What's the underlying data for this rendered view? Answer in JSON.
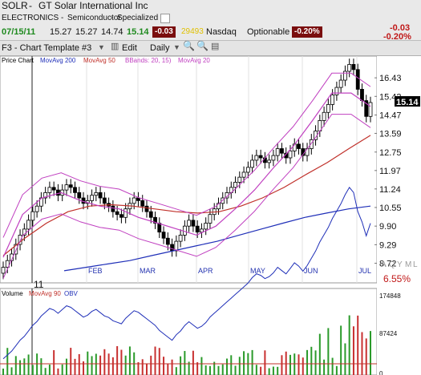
{
  "header": {
    "symbol": "SOLR",
    "company": "GT Solar International Inc",
    "sector": "ELECTRONICS",
    "industry": "Semiconductor",
    "subindustry": "Specialized",
    "template_label": "F3 - Chart Template #3",
    "edit_label": "Edit",
    "period_label": "Daily"
  },
  "quote": {
    "date": "07/15/11",
    "open": "15.27",
    "high": "15.27",
    "low": "14.74",
    "close": "15.14",
    "change": "-0.03",
    "volume": "29493",
    "exchange": "Nasdaq",
    "optionable": "Optionable",
    "pct_change": "-0.20%",
    "right_change": "-0.03",
    "right_pct": "-0.20%"
  },
  "legend": {
    "price_chart": "Price Chart",
    "ma200": "MovAvg 200",
    "ma50": "MovAvg 50",
    "bbands": "BBands: 20, 15)",
    "ma20": "MovAvg 20"
  },
  "volume_legend": {
    "volume": "Volume",
    "ma90": "MovAvg 90",
    "obv": "OBV"
  },
  "timeframe_letters": [
    "A",
    "Q",
    "Y",
    "M",
    "L"
  ],
  "colors": {
    "price_bar": "#000000",
    "ma200": "#1f2fb8",
    "ma50": "#c0302a",
    "bbands": "#c040c0",
    "ma20": "#c040c0",
    "obv": "#1f2fb8",
    "volume_up": "#2a9a2a",
    "volume_down": "#c83030",
    "down_badge": "#7a0e0e",
    "date_green": "#1f8a1f",
    "blue_label": "#2433b0",
    "ma_pink": "#9a2a9a"
  },
  "chart_data": {
    "type": "candlestick",
    "y_ticks": [
      "16.43",
      "15.42",
      "14.47",
      "13.59",
      "12.75",
      "11.97",
      "11.24",
      "10.55",
      "9.90",
      "9.29",
      "8.72"
    ],
    "y_range": [
      8.2,
      17.6
    ],
    "y_scale": "log",
    "last_price_label": "15.14",
    "x_labels": [
      "11",
      "FEB",
      "MAR",
      "APR",
      "MAY",
      "JUN",
      "JUL"
    ],
    "pct_label": "6.55%",
    "series": [
      {
        "name": "MovAvg 200",
        "values": [
          8.5,
          8.6,
          8.7,
          8.8,
          8.95,
          9.1,
          9.25,
          9.4,
          9.6,
          9.8,
          10.0,
          10.2,
          10.35,
          10.5,
          10.6
        ]
      },
      {
        "name": "MovAvg 50",
        "values": [
          8.95,
          9.5,
          10.0,
          10.4,
          10.6,
          10.65,
          10.6,
          10.5,
          10.4,
          10.35,
          10.4,
          10.6,
          10.9,
          11.3,
          11.8,
          12.3,
          12.9,
          13.5
        ]
      },
      {
        "name": "MovAvg 20",
        "values": [
          8.9,
          10.3,
          10.9,
          11.1,
          10.8,
          10.6,
          10.5,
          10.2,
          10.0,
          9.8,
          9.6,
          9.9,
          10.5,
          11.2,
          12.1,
          13.0,
          14.2,
          15.6,
          15.6,
          14.9
        ]
      }
    ],
    "closes": [
      8.6,
      8.8,
      9.0,
      9.3,
      9.6,
      9.8,
      10.1,
      10.4,
      10.6,
      10.9,
      11.1,
      11.3,
      11.2,
      11.0,
      11.2,
      11.4,
      11.3,
      11.1,
      10.9,
      10.7,
      10.8,
      11.0,
      11.1,
      10.9,
      10.7,
      10.6,
      10.4,
      10.3,
      10.2,
      10.5,
      10.7,
      10.9,
      10.8,
      10.6,
      10.4,
      10.2,
      10.0,
      9.7,
      9.5,
      9.3,
      9.1,
      9.4,
      9.6,
      9.9,
      10.1,
      9.9,
      9.7,
      9.8,
      10.0,
      10.3,
      10.5,
      10.7,
      10.9,
      11.1,
      11.3,
      11.5,
      11.7,
      11.9,
      12.1,
      12.4,
      12.6,
      12.5,
      12.3,
      12.4,
      12.6,
      12.9,
      12.7,
      12.5,
      12.8,
      13.1,
      12.9,
      12.6,
      12.9,
      13.3,
      13.7,
      14.2,
      14.6,
      15.0,
      15.5,
      15.9,
      16.3,
      16.8,
      17.2,
      16.9,
      15.8,
      15.2,
      14.4,
      15.1
    ]
  },
  "volume_chart": {
    "obv_ticks": [
      "174848",
      "87424",
      "0"
    ]
  }
}
